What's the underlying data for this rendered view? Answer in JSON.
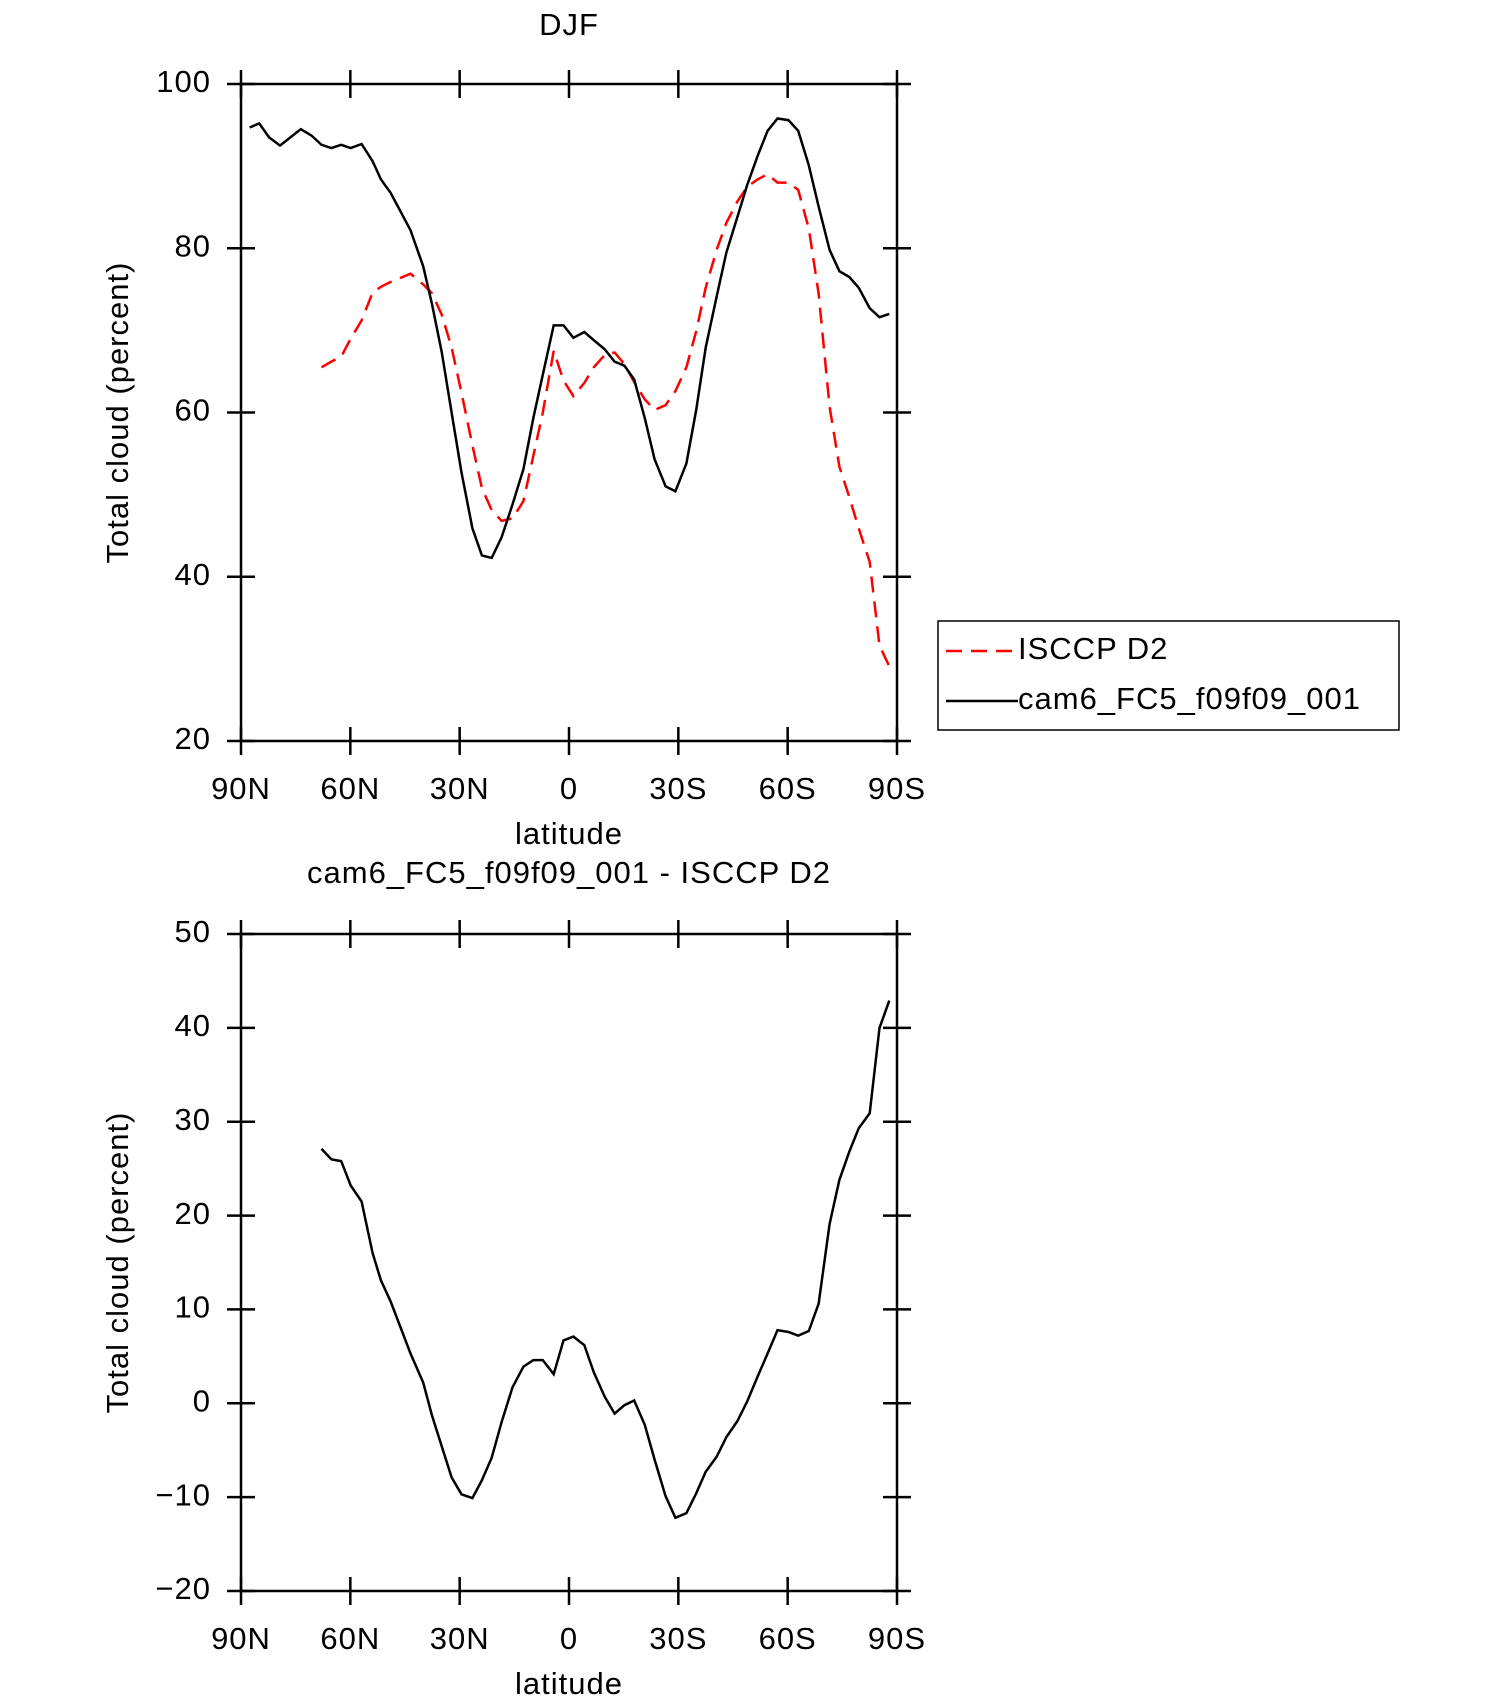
{
  "chart_data": [
    {
      "type": "line",
      "title": "DJF",
      "xlabel": "latitude",
      "ylabel": "Total cloud (percent)",
      "x": [
        87.6,
        85,
        82.3,
        79.3,
        73.6,
        70.6,
        67.9,
        65.2,
        62.5,
        59.9,
        56.9,
        53.9,
        51.6,
        48.9,
        43.5,
        40,
        37.6,
        34.9,
        32.2,
        29.5,
        26.5,
        23.9,
        21.2,
        18.5,
        15.5,
        12.5,
        9.8,
        7.2,
        4.2,
        1.5,
        -1.2,
        -4.2,
        -6.8,
        -9.8,
        -12.5,
        -15.2,
        -17.9,
        -20.8,
        -23.5,
        -26.5,
        -29.2,
        -32.2,
        -34.9,
        -37.5,
        -40.5,
        -43.2,
        -46.2,
        -48.9,
        -51.8,
        -54.5,
        -57.2,
        -60.2,
        -62.9,
        -65.8,
        -68.5,
        -71.5,
        -74.2,
        -76.9,
        -79.5,
        -82.5,
        -85.2,
        -87.9
      ],
      "xlim": [
        90,
        -90
      ],
      "xticks": [
        {
          "value": 90,
          "label": "90N"
        },
        {
          "value": 60,
          "label": "60N"
        },
        {
          "value": 30,
          "label": "30N"
        },
        0,
        {
          "value": -30,
          "label": "30S"
        },
        {
          "value": -60,
          "label": "60S"
        },
        {
          "value": -90,
          "label": "90S"
        }
      ],
      "ylim": [
        20,
        100
      ],
      "yticks": [
        20,
        40,
        60,
        80,
        100
      ],
      "legend": "right",
      "series": [
        {
          "name": "ISCCP D2",
          "color": "#ff0000",
          "dash": true,
          "values": [
            null,
            null,
            null,
            null,
            null,
            null,
            65.5,
            66.2,
            66.8,
            69.0,
            71.2,
            74.6,
            75.3,
            75.9,
            76.9,
            75.6,
            74.5,
            71.9,
            67.9,
            62.4,
            56,
            50.8,
            48.1,
            46.8,
            47.1,
            49.2,
            54.7,
            60,
            67.5,
            63.9,
            62,
            63.6,
            65.5,
            67,
            67.3,
            65.9,
            63.7,
            61.6,
            60.3,
            60.9,
            62.6,
            65.5,
            69.9,
            75.2,
            79.8,
            83.1,
            85.7,
            87.5,
            88.4,
            89,
            88,
            88,
            87.1,
            82.4,
            74.5,
            60.7,
            53.4,
            49.7,
            45.9,
            41.8,
            31.6,
            29.1
          ]
        },
        {
          "name": "cam6_FC5_f09f09_001",
          "color": "#000000",
          "dash": false,
          "values": [
            94.7,
            95.2,
            93.5,
            92.5,
            94.5,
            93.7,
            92.6,
            92.2,
            92.6,
            92.2,
            92.7,
            90.6,
            88.4,
            86.7,
            82.2,
            77.8,
            73.2,
            67.3,
            60,
            52.7,
            45.9,
            42.6,
            42.3,
            44.8,
            48.8,
            53.1,
            59.3,
            64.6,
            70.6,
            70.6,
            69.1,
            69.8,
            68.8,
            67.7,
            66.2,
            65.7,
            64,
            59.3,
            54.3,
            51,
            50.4,
            53.8,
            60.3,
            67.9,
            74.1,
            79.5,
            83.8,
            87.7,
            91.3,
            94.3,
            95.8,
            95.6,
            94.3,
            90.1,
            85.1,
            79.8,
            77.2,
            76.5,
            75.2,
            72.7,
            71.6,
            72
          ]
        }
      ]
    },
    {
      "type": "line",
      "title": "cam6_FC5_f09f09_001 - ISCCP D2",
      "xlabel": "latitude",
      "ylabel": "Total cloud (percent)",
      "x": [
        87.6,
        85,
        82.3,
        79.3,
        73.6,
        70.6,
        67.9,
        65.2,
        62.5,
        59.9,
        56.9,
        53.9,
        51.6,
        48.9,
        43.5,
        40,
        37.6,
        34.9,
        32.2,
        29.5,
        26.5,
        23.9,
        21.2,
        18.5,
        15.5,
        12.5,
        9.8,
        7.2,
        4.2,
        1.5,
        -1.2,
        -4.2,
        -6.8,
        -9.8,
        -12.5,
        -15.2,
        -17.9,
        -20.8,
        -23.5,
        -26.5,
        -29.2,
        -32.2,
        -34.9,
        -37.5,
        -40.5,
        -43.2,
        -46.2,
        -48.9,
        -51.8,
        -54.5,
        -57.2,
        -60.2,
        -62.9,
        -65.8,
        -68.5,
        -71.5,
        -74.2,
        -76.9,
        -79.5,
        -82.5,
        -85.2,
        -87.9
      ],
      "xlim": [
        90,
        -90
      ],
      "xticks": [
        {
          "value": 90,
          "label": "90N"
        },
        {
          "value": 60,
          "label": "60N"
        },
        {
          "value": 30,
          "label": "30N"
        },
        0,
        {
          "value": -30,
          "label": "30S"
        },
        {
          "value": -60,
          "label": "60S"
        },
        {
          "value": -90,
          "label": "90S"
        }
      ],
      "ylim": [
        -20,
        50
      ],
      "yticks": [
        {
          "value": -20,
          "label": "−20"
        },
        {
          "value": -10,
          "label": "−10"
        },
        0,
        10,
        20,
        30,
        40,
        50
      ],
      "series": [
        {
          "color": "#000000",
          "dash": false,
          "values": [
            null,
            null,
            null,
            null,
            null,
            null,
            27.1,
            26,
            25.8,
            23.2,
            21.5,
            16,
            13.1,
            10.8,
            5.3,
            2.2,
            -1.3,
            -4.6,
            -7.9,
            -9.7,
            -10.1,
            -8.2,
            -5.8,
            -2,
            1.7,
            3.9,
            4.6,
            4.6,
            3.1,
            6.7,
            7.1,
            6.2,
            3.3,
            0.7,
            -1.1,
            -0.2,
            0.3,
            -2.3,
            -6,
            -9.9,
            -12.2,
            -11.7,
            -9.6,
            -7.3,
            -5.7,
            -3.6,
            -1.9,
            0.2,
            2.9,
            5.3,
            7.8,
            7.6,
            7.2,
            7.7,
            10.6,
            19.1,
            23.8,
            26.8,
            29.3,
            30.9,
            40,
            42.9
          ]
        }
      ]
    }
  ]
}
